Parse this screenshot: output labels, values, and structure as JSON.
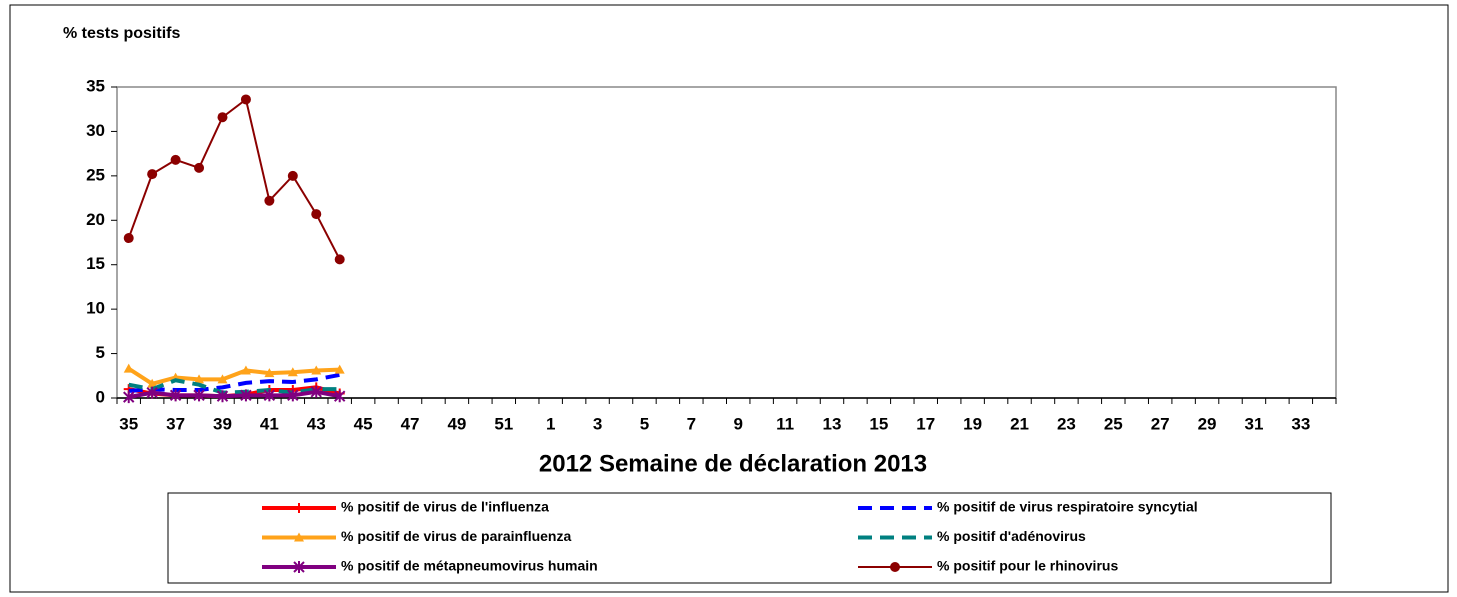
{
  "chart_data": {
    "type": "line",
    "title": "% tests positifs",
    "x_label": "2012  Semaine de déclaration   2013",
    "categories": [
      "35",
      null,
      "37",
      null,
      "39",
      null,
      "41",
      null,
      "43",
      null,
      "45",
      null,
      "47",
      null,
      "49",
      null,
      "51",
      null,
      "1",
      null,
      "3",
      null,
      "5",
      null,
      "7",
      null,
      "9",
      null,
      "11",
      null,
      "13",
      null,
      "15",
      null,
      "17",
      null,
      "19",
      null,
      "21",
      null,
      "23",
      null,
      "25",
      null,
      "27",
      null,
      "29",
      null,
      "31",
      null,
      "33",
      null
    ],
    "ylim": [
      0,
      35
    ],
    "yticks": [
      0,
      5,
      10,
      15,
      20,
      25,
      30,
      35
    ],
    "grid": false,
    "series": [
      {
        "name": "% positif de virus de l'influenza",
        "color": "#ff0000",
        "marker": "plus",
        "dashed": false,
        "values": [
          1.0,
          0.5,
          0.3,
          0.3,
          0.2,
          0.4,
          0.9,
          0.9,
          1.2,
          0.5,
          null,
          null,
          null,
          null,
          null,
          null,
          null,
          null,
          null,
          null,
          null,
          null,
          null,
          null,
          null,
          null,
          null,
          null,
          null,
          null,
          null,
          null,
          null,
          null,
          null,
          null,
          null,
          null,
          null,
          null,
          null,
          null,
          null,
          null,
          null,
          null,
          null,
          null,
          null,
          null,
          null,
          null
        ]
      },
      {
        "name": "% positif de virus respiratoire syncytial",
        "color": "#0000ff",
        "marker": "none",
        "dashed": true,
        "values": [
          0.8,
          1.0,
          0.9,
          0.9,
          1.2,
          1.7,
          1.9,
          1.8,
          2.1,
          2.6,
          null,
          null,
          null,
          null,
          null,
          null,
          null,
          null,
          null,
          null,
          null,
          null,
          null,
          null,
          null,
          null,
          null,
          null,
          null,
          null,
          null,
          null,
          null,
          null,
          null,
          null,
          null,
          null,
          null,
          null,
          null,
          null,
          null,
          null,
          null,
          null,
          null,
          null,
          null,
          null,
          null,
          null
        ]
      },
      {
        "name": "% positif de virus de parainfluenza",
        "color": "#ffa31a",
        "marker": "triangle",
        "dashed": false,
        "values": [
          3.3,
          1.6,
          2.3,
          2.1,
          2.1,
          3.1,
          2.8,
          2.9,
          3.1,
          3.2,
          null,
          null,
          null,
          null,
          null,
          null,
          null,
          null,
          null,
          null,
          null,
          null,
          null,
          null,
          null,
          null,
          null,
          null,
          null,
          null,
          null,
          null,
          null,
          null,
          null,
          null,
          null,
          null,
          null,
          null,
          null,
          null,
          null,
          null,
          null,
          null,
          null,
          null,
          null,
          null,
          null,
          null
        ]
      },
      {
        "name": "% positif d'adénovirus",
        "color": "#008080",
        "marker": "none",
        "dashed": true,
        "values": [
          1.5,
          1.0,
          2.0,
          1.5,
          0.6,
          0.7,
          0.9,
          0.6,
          1.0,
          1.0,
          null,
          null,
          null,
          null,
          null,
          null,
          null,
          null,
          null,
          null,
          null,
          null,
          null,
          null,
          null,
          null,
          null,
          null,
          null,
          null,
          null,
          null,
          null,
          null,
          null,
          null,
          null,
          null,
          null,
          null,
          null,
          null,
          null,
          null,
          null,
          null,
          null,
          null,
          null,
          null,
          null,
          null
        ]
      },
      {
        "name": "% positif de métapneumovirus humain",
        "color": "#800080",
        "marker": "asterisk",
        "dashed": false,
        "values": [
          0.1,
          0.6,
          0.3,
          0.3,
          0.2,
          0.3,
          0.3,
          0.3,
          0.7,
          0.2,
          null,
          null,
          null,
          null,
          null,
          null,
          null,
          null,
          null,
          null,
          null,
          null,
          null,
          null,
          null,
          null,
          null,
          null,
          null,
          null,
          null,
          null,
          null,
          null,
          null,
          null,
          null,
          null,
          null,
          null,
          null,
          null,
          null,
          null,
          null,
          null,
          null,
          null,
          null,
          null,
          null,
          null
        ]
      },
      {
        "name": "% positif pour le rhinovirus",
        "color": "#8b0000",
        "marker": "circle",
        "dashed": false,
        "values": [
          18.0,
          25.2,
          26.8,
          25.9,
          31.6,
          33.6,
          22.2,
          25.0,
          20.7,
          15.6,
          null,
          null,
          null,
          null,
          null,
          null,
          null,
          null,
          null,
          null,
          null,
          null,
          null,
          null,
          null,
          null,
          null,
          null,
          null,
          null,
          null,
          null,
          null,
          null,
          null,
          null,
          null,
          null,
          null,
          null,
          null,
          null,
          null,
          null,
          null,
          null,
          null,
          null,
          null,
          null,
          null,
          null
        ]
      }
    ]
  }
}
